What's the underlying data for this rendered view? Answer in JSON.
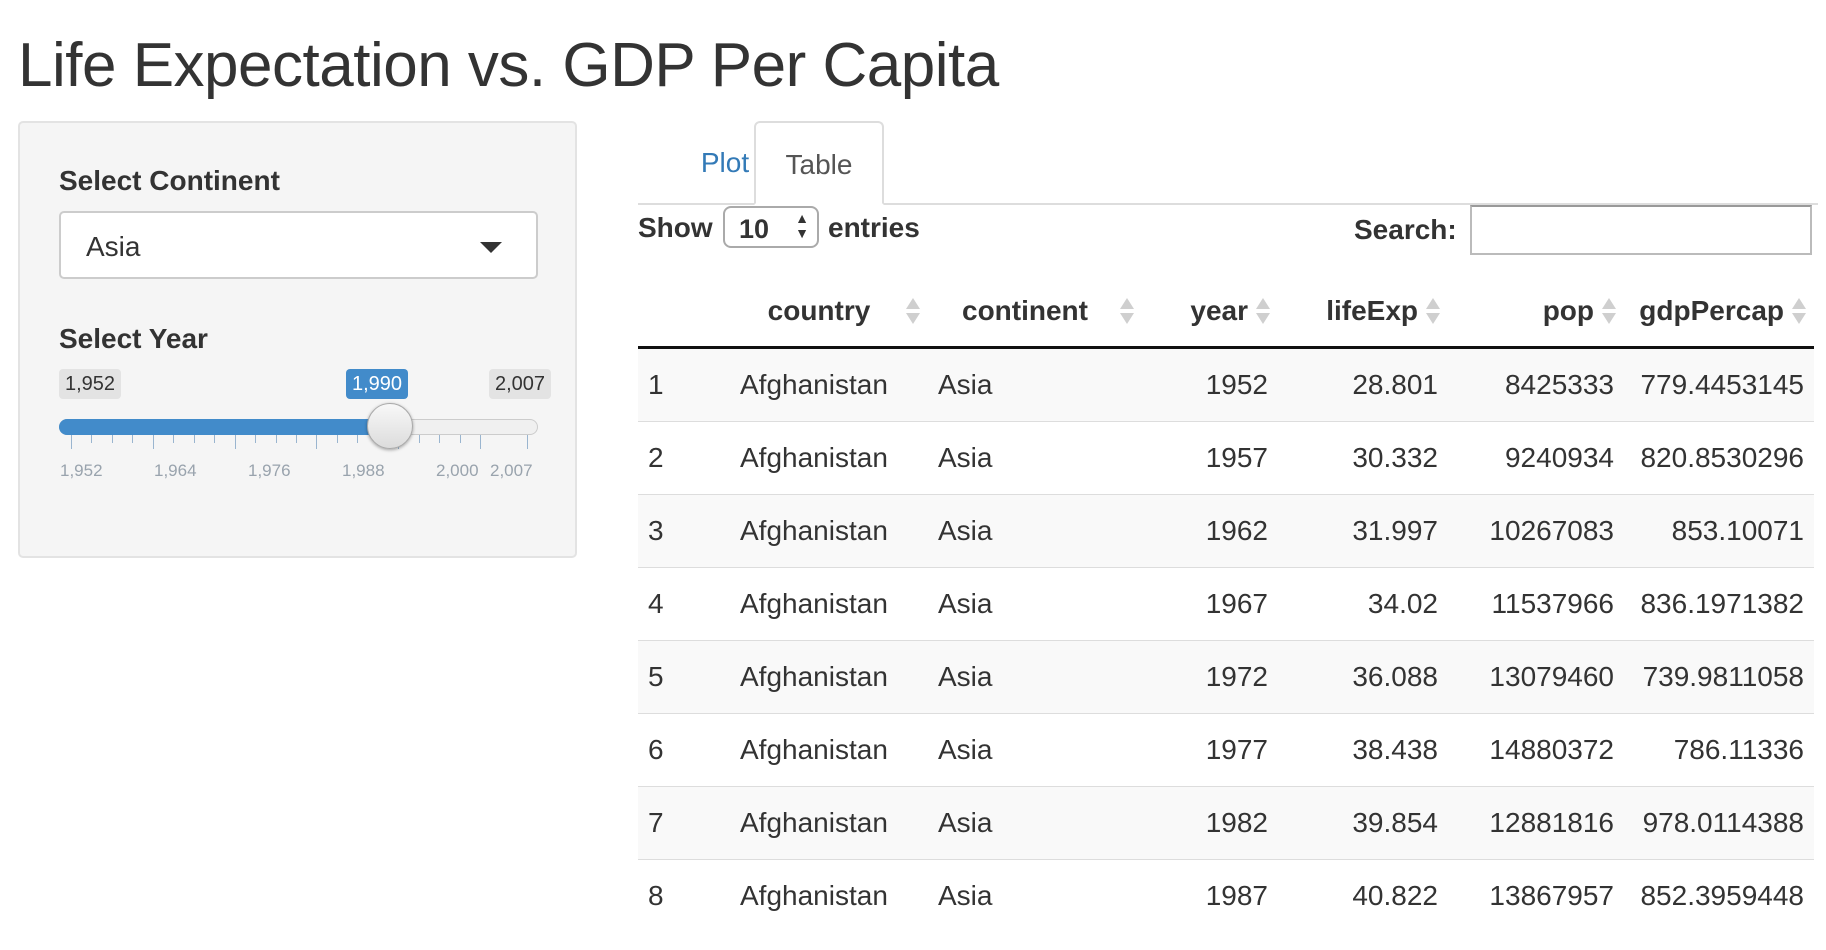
{
  "page_title": "Life Expectation vs. GDP Per Capita",
  "sidebar": {
    "continent_label": "Select Continent",
    "continent_value": "Asia",
    "year_label": "Select Year",
    "year_min": "1,952",
    "year_max": "2,007",
    "year_selected": "1,990",
    "year_fraction": 0.691,
    "grid_labels": [
      "1,952",
      "1,964",
      "1,976",
      "1,988",
      "2,000",
      "2,007"
    ]
  },
  "tabs": [
    "Plot",
    "Table"
  ],
  "active_tab": "Table",
  "table_controls": {
    "show_label": "Show",
    "entries_label": "entries",
    "length_value": "10",
    "search_label": "Search:",
    "search_value": ""
  },
  "table": {
    "columns": [
      "",
      "country",
      "continent",
      "year",
      "lifeExp",
      "pop",
      "gdpPercap"
    ],
    "rows": [
      [
        "1",
        "Afghanistan",
        "Asia",
        "1952",
        "28.801",
        "8425333",
        "779.4453145"
      ],
      [
        "2",
        "Afghanistan",
        "Asia",
        "1957",
        "30.332",
        "9240934",
        "820.8530296"
      ],
      [
        "3",
        "Afghanistan",
        "Asia",
        "1962",
        "31.997",
        "10267083",
        "853.10071"
      ],
      [
        "4",
        "Afghanistan",
        "Asia",
        "1967",
        "34.02",
        "11537966",
        "836.1971382"
      ],
      [
        "5",
        "Afghanistan",
        "Asia",
        "1972",
        "36.088",
        "13079460",
        "739.9811058"
      ],
      [
        "6",
        "Afghanistan",
        "Asia",
        "1977",
        "38.438",
        "14880372",
        "786.11336"
      ],
      [
        "7",
        "Afghanistan",
        "Asia",
        "1982",
        "39.854",
        "12881816",
        "978.0114388"
      ],
      [
        "8",
        "Afghanistan",
        "Asia",
        "1987",
        "40.822",
        "13867957",
        "852.3959448"
      ]
    ]
  },
  "colors": {
    "accent": "#428bca",
    "link": "#337ab7"
  }
}
